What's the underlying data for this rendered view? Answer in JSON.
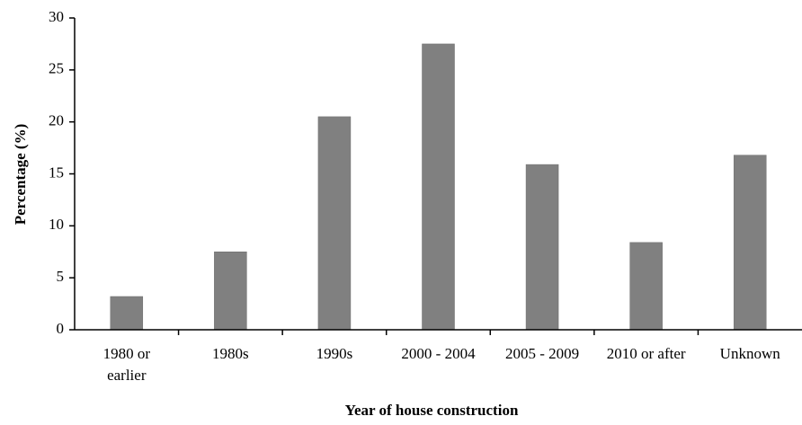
{
  "chart_data": {
    "type": "bar",
    "x_label": "Year of house construction",
    "y_label": "Percentage (%)",
    "categories": [
      "1980 or earlier",
      "1980s",
      "1990s",
      "2000 - 2004",
      "2005 - 2009",
      "2010 or after",
      "Unknown"
    ],
    "values": [
      3.2,
      7.5,
      20.5,
      27.5,
      15.9,
      8.4,
      16.8
    ],
    "color": "#808080",
    "ylim": [
      0,
      30
    ],
    "yticks": [
      0,
      5,
      10,
      15,
      20,
      25,
      30
    ],
    "grid": false
  }
}
